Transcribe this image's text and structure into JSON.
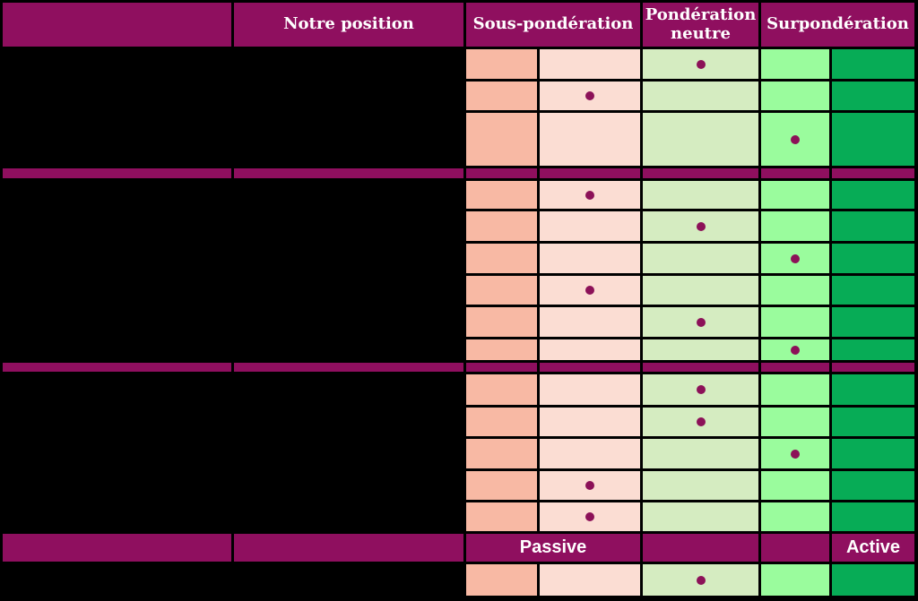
{
  "header": {
    "corner_label": "",
    "notre_position": "Notre position",
    "sous_ponderation": "Sous-pondération",
    "ponderation_neutre": "Pondération neutre",
    "surponderation": "Surpondération"
  },
  "footer_band": {
    "passive": "Passive",
    "active": "Active"
  },
  "colors": {
    "background": "#000000",
    "band_magenta": "#8F0F5F",
    "dot": "#8C1158",
    "header_text": "#FFFFFF",
    "scale": [
      "#F8B9A4",
      "#FBDDD3",
      "#D5ECC1",
      "#9AFC9D",
      "#07AC56"
    ]
  },
  "chart_data": {
    "type": "table",
    "column_groups": [
      {
        "label": "Sous-pondération",
        "span": 2
      },
      {
        "label": "Pondération neutre",
        "span": 1
      },
      {
        "label": "Surpondération",
        "span": 2
      }
    ],
    "row_labels_visible": false,
    "scale_levels": [
      "strong-underweight",
      "underweight",
      "neutral",
      "overweight",
      "strong-overweight"
    ],
    "sections": [
      {
        "rows": [
          {
            "dot_column": 3
          },
          {
            "dot_column": 2
          },
          {
            "dot_column": 4
          }
        ]
      },
      {
        "rows": [
          {
            "dot_column": 2
          },
          {
            "dot_column": 3
          },
          {
            "dot_column": 4
          },
          {
            "dot_column": 2
          },
          {
            "dot_column": 3
          },
          {
            "dot_column": 4
          }
        ]
      },
      {
        "rows": [
          {
            "dot_column": 3
          },
          {
            "dot_column": 3
          },
          {
            "dot_column": 4
          },
          {
            "dot_column": 2
          },
          {
            "dot_column": 2
          }
        ]
      },
      {
        "rows": [
          {
            "dot_column": 3
          }
        ]
      }
    ],
    "footer_labels": {
      "passive": "Passive",
      "active": "Active"
    }
  }
}
